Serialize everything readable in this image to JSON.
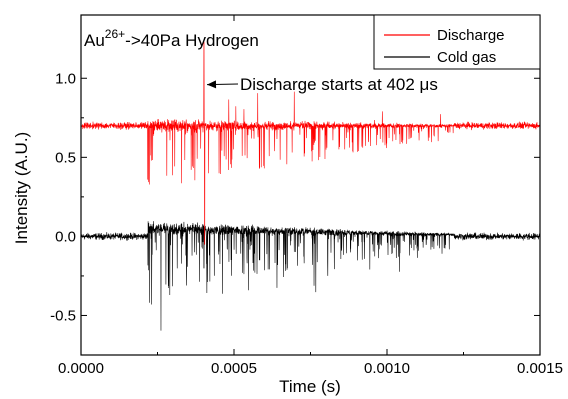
{
  "chart_data": {
    "type": "line",
    "xlabel": "Time (s)",
    "ylabel": "Intensity (A.U.)",
    "xlim": [
      0,
      0.0015
    ],
    "ylim": [
      -0.75,
      1.4
    ],
    "x_ticks": [
      {
        "value": 0,
        "label": "0.0000"
      },
      {
        "value": 0.0005,
        "label": "0.0005"
      },
      {
        "value": 0.001,
        "label": "0.0010"
      },
      {
        "value": 0.0015,
        "label": "0.0015"
      }
    ],
    "y_ticks": [
      {
        "value": -0.5,
        "label": "-0.5"
      },
      {
        "value": 0,
        "label": "0.0"
      },
      {
        "value": 0.5,
        "label": "0.5"
      },
      {
        "value": 1.0,
        "label": "1.0"
      }
    ],
    "annotations": {
      "ion_prefix": "Au",
      "ion_charge": "26+",
      "ion_suffix": "->40Pa Hydrogen",
      "discharge_note": "Discharge starts at 402 μs",
      "discharge_point": {
        "x": 0.000402,
        "y": 0.7
      }
    },
    "legend_position": "top-right",
    "series": [
      {
        "name": "Discharge",
        "color": "#ff0000",
        "baseline": 0.7,
        "quiet_noise": 0.03,
        "active_window": [
          0.000218,
          0.00122
        ],
        "max_spike": 1.23,
        "min_spike": 0.25
      },
      {
        "name": "Cold gas",
        "color": "#000000",
        "baseline": 0.0,
        "quiet_noise": 0.03,
        "active_window": [
          0.000218,
          0.00122
        ],
        "max_spike": 0.12,
        "min_spike": -0.67
      }
    ]
  }
}
